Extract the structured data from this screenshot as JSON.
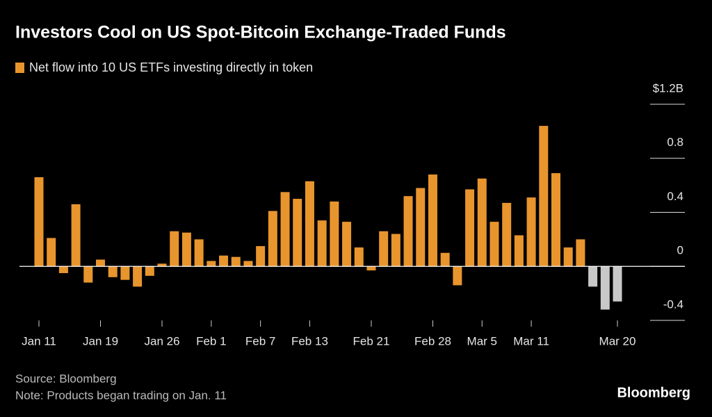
{
  "chart_data": {
    "type": "bar",
    "title": "Investors Cool on US Spot-Bitcoin Exchange-Traded Funds",
    "series": [
      {
        "name": "Net flow into 10 US ETFs investing directly in token",
        "color": "#e8952e",
        "values": [
          0.66,
          0.21,
          -0.05,
          0.46,
          -0.12,
          0.05,
          -0.08,
          -0.1,
          -0.15,
          -0.07,
          0.02,
          0.26,
          0.25,
          0.2,
          0.04,
          0.08,
          0.07,
          0.04,
          0.15,
          0.41,
          0.55,
          0.5,
          0.63,
          0.34,
          0.48,
          0.33,
          0.14,
          -0.03,
          0.26,
          0.24,
          0.52,
          0.58,
          0.68,
          0.1,
          -0.14,
          0.57,
          0.65,
          0.33,
          0.47,
          0.23,
          0.51,
          1.04,
          0.69,
          0.14,
          0.2,
          -0.15,
          -0.32,
          -0.26
        ]
      }
    ],
    "bar_colors": [
      "#e8952e",
      "#e8952e",
      "#e8952e",
      "#e8952e",
      "#e8952e",
      "#e8952e",
      "#e8952e",
      "#e8952e",
      "#e8952e",
      "#e8952e",
      "#e8952e",
      "#e8952e",
      "#e8952e",
      "#e8952e",
      "#e8952e",
      "#e8952e",
      "#e8952e",
      "#e8952e",
      "#e8952e",
      "#e8952e",
      "#e8952e",
      "#e8952e",
      "#e8952e",
      "#e8952e",
      "#e8952e",
      "#e8952e",
      "#e8952e",
      "#e8952e",
      "#e8952e",
      "#e8952e",
      "#e8952e",
      "#e8952e",
      "#e8952e",
      "#e8952e",
      "#e8952e",
      "#e8952e",
      "#e8952e",
      "#e8952e",
      "#e8952e",
      "#e8952e",
      "#e8952e",
      "#e8952e",
      "#e8952e",
      "#e8952e",
      "#e8952e",
      "#c8c8c8",
      "#c8c8c8",
      "#c8c8c8"
    ],
    "categories": [
      "Jan 11",
      null,
      null,
      null,
      null,
      "Jan 19",
      null,
      null,
      null,
      null,
      "Jan 26",
      null,
      null,
      null,
      "Feb 1",
      null,
      null,
      null,
      "Feb 7",
      null,
      null,
      null,
      "Feb 13",
      null,
      null,
      null,
      null,
      "Feb 21",
      null,
      null,
      null,
      null,
      "Feb 28",
      null,
      null,
      null,
      "Mar 5",
      null,
      null,
      null,
      "Mar 11",
      null,
      null,
      null,
      null,
      null,
      null,
      "Mar 20"
    ],
    "ylim": [
      -0.4,
      1.2
    ],
    "yticks": [
      -0.4,
      0,
      0.4,
      0.8,
      {
        "value": 1.2,
        "label": "$1.2B"
      }
    ],
    "source": "Source: Bloomberg",
    "note": "Note: Products began trading on Jan. 11",
    "brand": "Bloomberg"
  }
}
